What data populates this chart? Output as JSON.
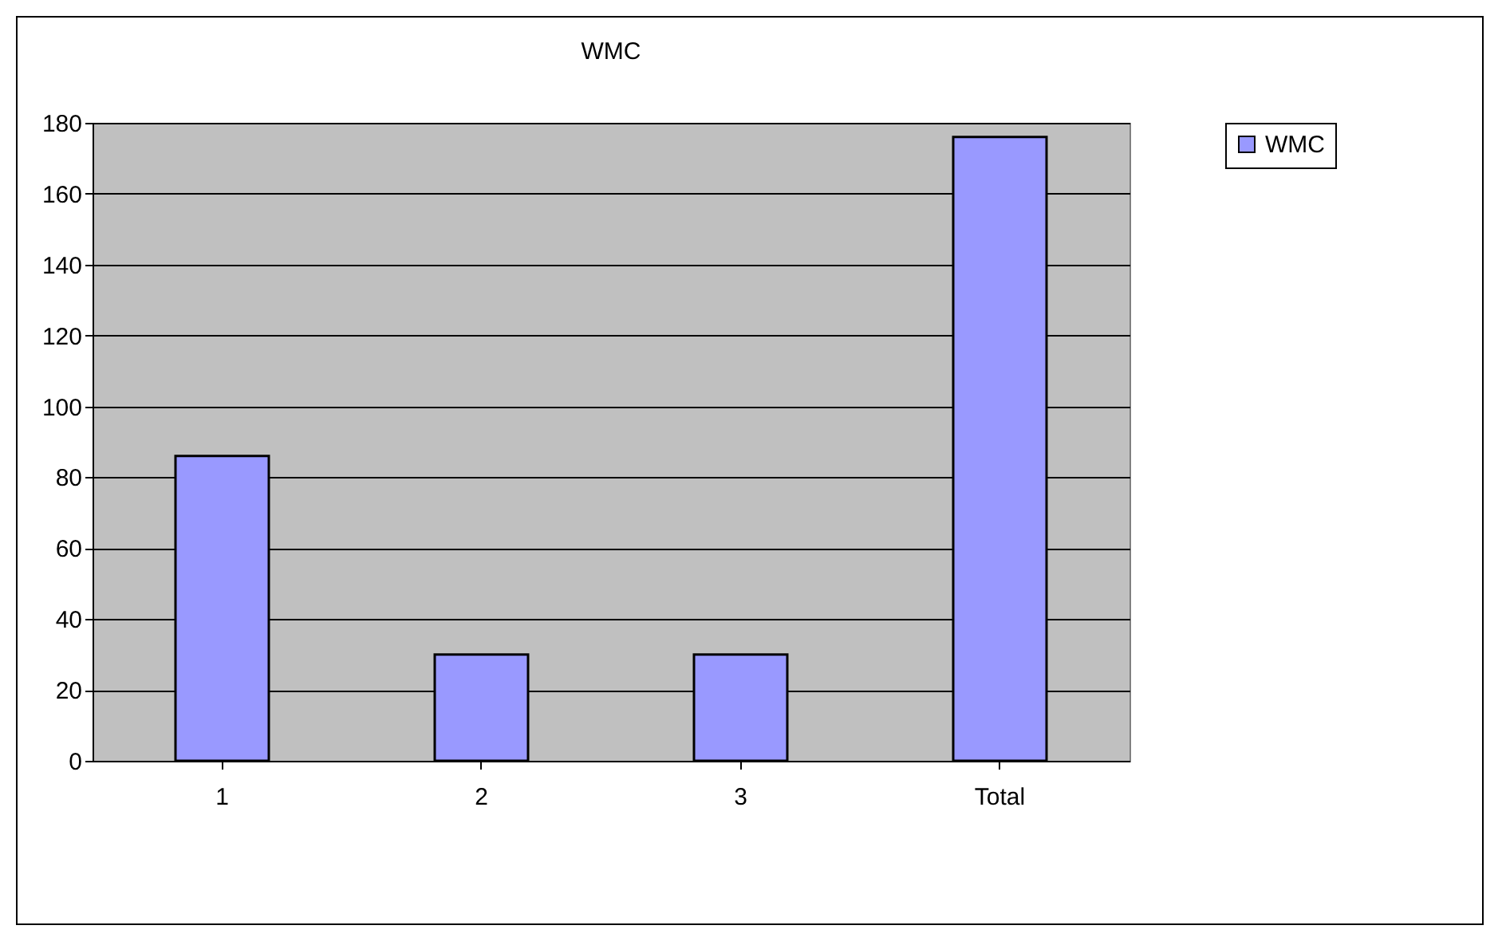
{
  "chart_data": {
    "type": "bar",
    "title": "WMC",
    "categories": [
      "1",
      "2",
      "3",
      "Total"
    ],
    "series": [
      {
        "name": "WMC",
        "color": "#9999ff",
        "values": [
          86,
          30,
          30,
          176
        ]
      }
    ],
    "ylim": [
      0,
      180
    ],
    "yticks": [
      0,
      20,
      40,
      60,
      80,
      100,
      120,
      140,
      160,
      180
    ],
    "grid": "y",
    "legend": "right"
  }
}
